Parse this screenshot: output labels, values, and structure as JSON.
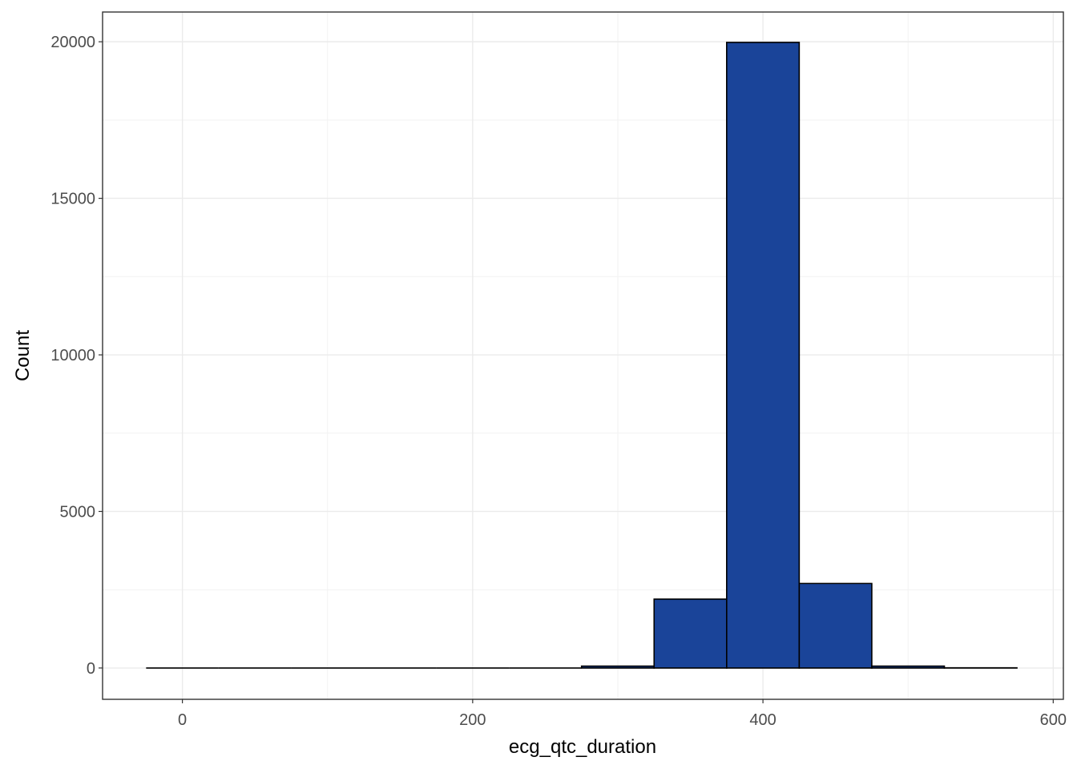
{
  "chart_data": {
    "type": "histogram",
    "x_label": "ecg_qtc_duration",
    "y_label": "Count",
    "bins": [
      -25,
      25,
      75,
      125,
      175,
      225,
      275,
      325,
      375,
      425,
      475,
      525,
      575
    ],
    "values": [
      0,
      0,
      0,
      0,
      0,
      0,
      60,
      2200,
      19980,
      2700,
      60,
      5
    ],
    "color": "#1a4499",
    "xlim": [
      -55,
      607
    ],
    "xticks": [
      0,
      200,
      400,
      600
    ],
    "ylim": [
      -1000,
      20950
    ],
    "yticks": [
      0,
      5000,
      10000,
      15000,
      20000
    ],
    "grid": true
  }
}
